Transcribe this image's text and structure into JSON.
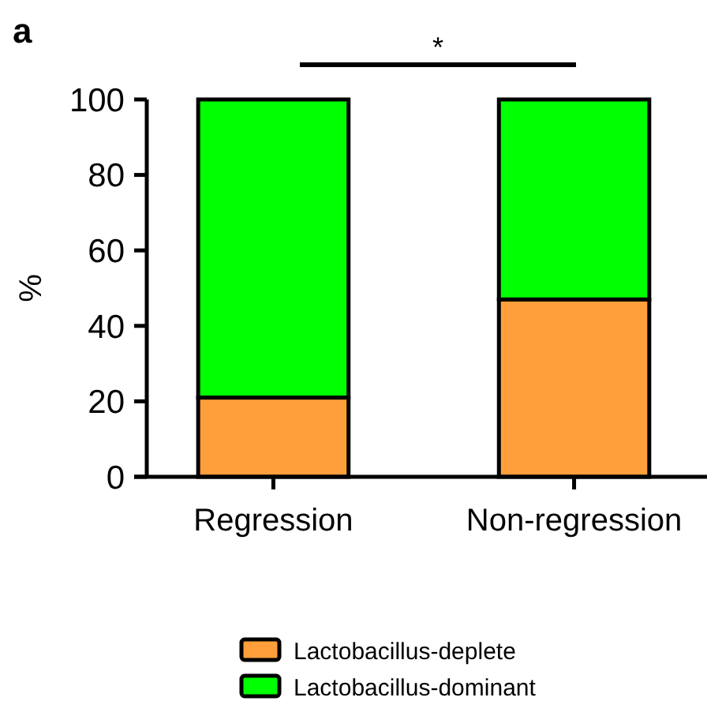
{
  "chart_data": {
    "type": "bar",
    "stacked": true,
    "categories": [
      "Regression",
      "Non-regression"
    ],
    "series": [
      {
        "name": "Lactobacillus-deplete",
        "color": "#ff9f3b",
        "values": [
          21,
          47
        ]
      },
      {
        "name": "Lactobacillus-dominant",
        "color": "#00ff00",
        "values": [
          79,
          53
        ]
      }
    ],
    "ylabel": "%",
    "ylim": [
      0,
      100
    ],
    "yticks": [
      0,
      20,
      40,
      60,
      80,
      100
    ],
    "legend": "bottom",
    "annotations": [
      "a",
      "*"
    ]
  }
}
